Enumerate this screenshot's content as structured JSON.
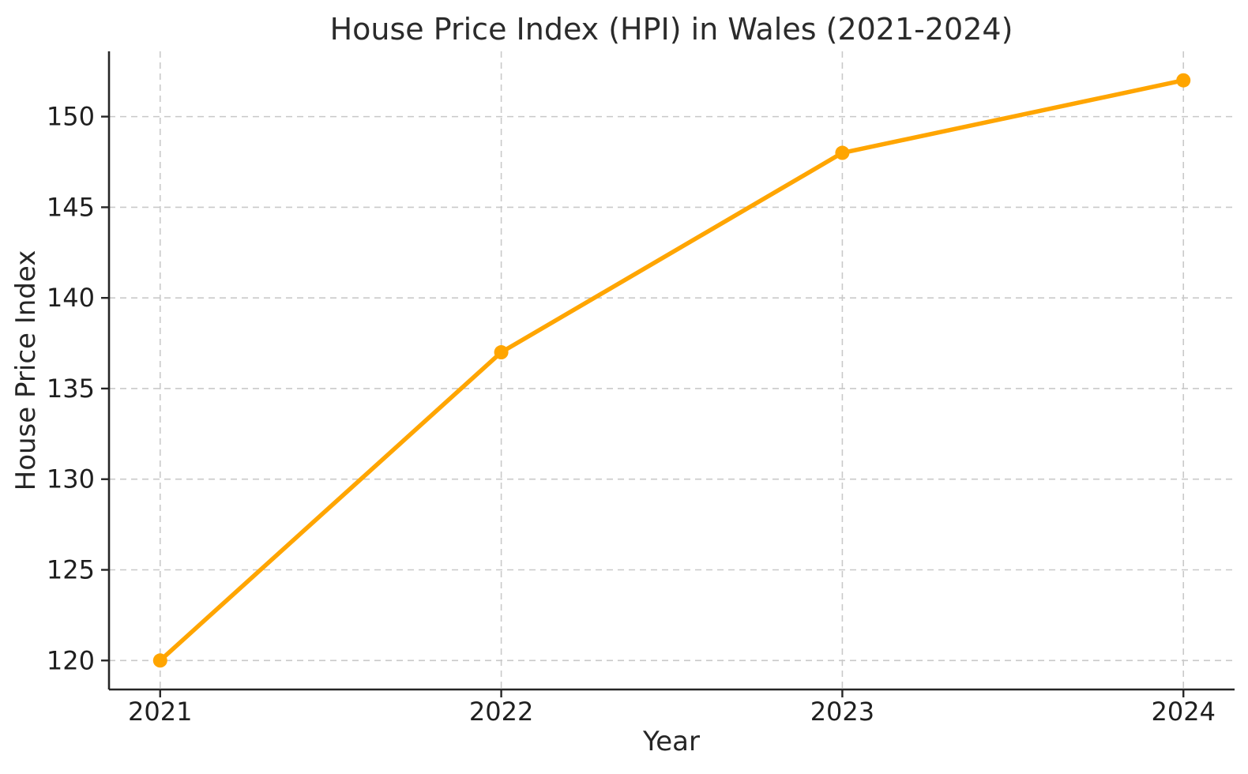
{
  "figure": {
    "background": "#ffffff",
    "text_color": "#262626",
    "grid_color": "#c9c9c9",
    "spine_color": "#262626"
  },
  "chart_data": {
    "type": "line",
    "title": "House Price Index (HPI) in Wales (2021-2024)",
    "xlabel": "Year",
    "ylabel": "House Price Index",
    "x": [
      2021,
      2022,
      2023,
      2024
    ],
    "series": [
      {
        "name": "House Price Index",
        "values": [
          120,
          137,
          148,
          152
        ],
        "color": "#FFA500",
        "marker": "circle",
        "marker_radius": 9
      }
    ],
    "xticks": [
      2021,
      2022,
      2023,
      2024
    ],
    "yticks": [
      120,
      125,
      130,
      135,
      140,
      145,
      150
    ],
    "xlim": [
      2020.85,
      2024.15
    ],
    "ylim": [
      118.4,
      153.6
    ],
    "grid": true,
    "grid_style": "dashed",
    "legend": false,
    "spines": [
      "left",
      "bottom"
    ]
  }
}
